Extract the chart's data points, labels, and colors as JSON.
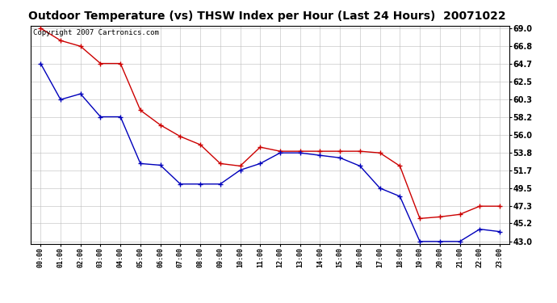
{
  "title": "Outdoor Temperature (vs) THSW Index per Hour (Last 24 Hours)  20071022",
  "copyright_text": "Copyright 2007 Cartronics.com",
  "hours": [
    "00:00",
    "01:00",
    "02:00",
    "03:00",
    "04:00",
    "05:00",
    "06:00",
    "07:00",
    "08:00",
    "09:00",
    "10:00",
    "11:00",
    "12:00",
    "13:00",
    "14:00",
    "15:00",
    "16:00",
    "17:00",
    "18:00",
    "19:00",
    "20:00",
    "21:00",
    "22:00",
    "23:00"
  ],
  "temp_blue": [
    64.7,
    60.3,
    61.0,
    58.2,
    58.2,
    52.5,
    52.3,
    50.0,
    50.0,
    50.0,
    51.7,
    52.5,
    53.8,
    53.8,
    53.5,
    53.2,
    52.2,
    49.5,
    48.5,
    43.0,
    43.0,
    43.0,
    44.5,
    44.2
  ],
  "thsw_red": [
    69.0,
    67.5,
    66.8,
    64.7,
    64.7,
    59.0,
    57.2,
    55.8,
    54.8,
    52.5,
    52.2,
    54.5,
    54.0,
    54.0,
    54.0,
    54.0,
    54.0,
    53.8,
    52.2,
    45.8,
    46.0,
    46.3,
    47.3,
    47.3
  ],
  "ylim_min": 43.0,
  "ylim_max": 69.0,
  "yticks": [
    43.0,
    45.2,
    47.3,
    49.5,
    51.7,
    53.8,
    56.0,
    58.2,
    60.3,
    62.5,
    64.7,
    66.8,
    69.0
  ],
  "blue_color": "#0000bb",
  "red_color": "#cc0000",
  "bg_color": "#ffffff",
  "plot_bg_color": "#ffffff",
  "grid_color": "#bbbbbb",
  "title_fontsize": 10,
  "copyright_fontsize": 6.5,
  "figwidth": 6.9,
  "figheight": 3.75,
  "dpi": 100
}
